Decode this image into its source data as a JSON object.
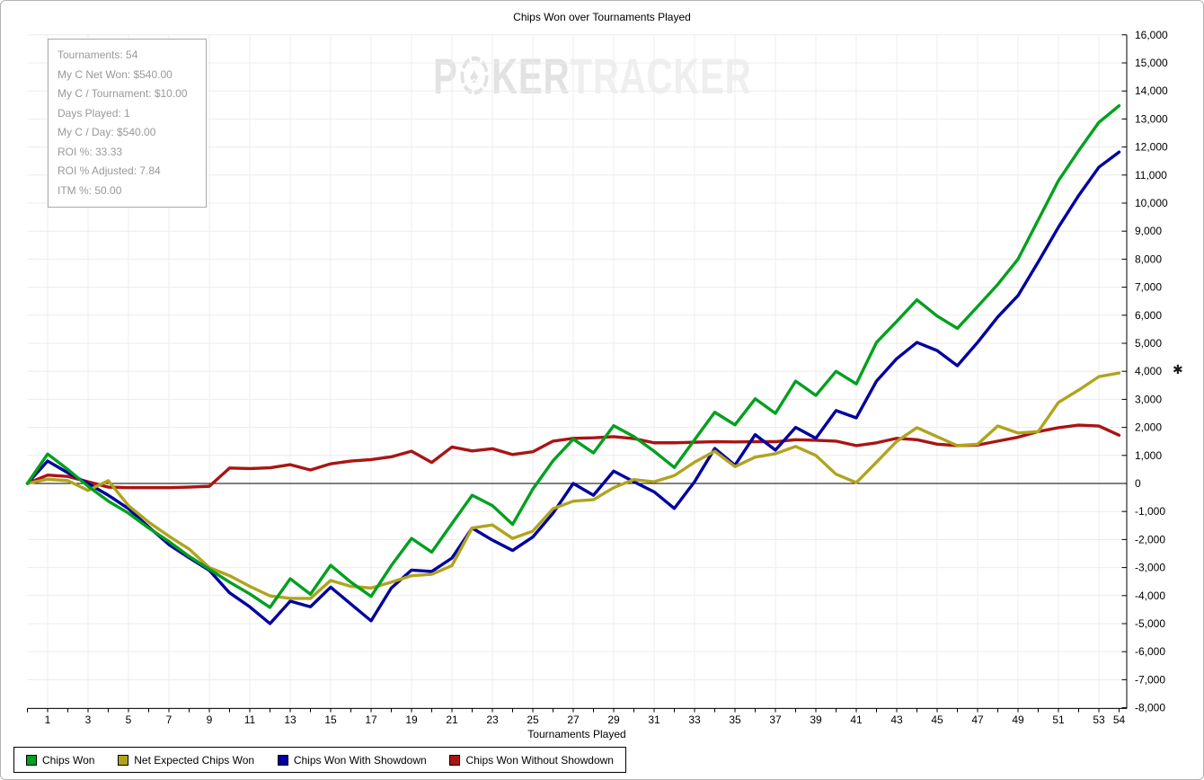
{
  "window": {
    "title": "Chips Won over Tournaments Played"
  },
  "info_box": {
    "lines": [
      "Tournaments: 54",
      "My C Net Won: $540.00",
      "My C / Tournament: $10.00",
      "Days Played: 1",
      "My C / Day: $540.00",
      "ROI %: 33.33",
      "ROI % Adjusted: 7.84",
      "ITM %: 50.00"
    ]
  },
  "watermark": {
    "part1": "P",
    "part2": "KER",
    "part3": "TRACKER",
    "chip_icon": "poker-chip-icon"
  },
  "axes": {
    "x_title": "Tournaments Played",
    "x_min": 0,
    "x_max": 54,
    "x_tick_labels": [
      "1",
      "3",
      "5",
      "7",
      "9",
      "11",
      "13",
      "15",
      "17",
      "19",
      "21",
      "23",
      "25",
      "27",
      "29",
      "31",
      "33",
      "35",
      "37",
      "39",
      "41",
      "43",
      "45",
      "47",
      "49",
      "51",
      "53",
      "54"
    ],
    "y_min": -8000,
    "y_max": 16000,
    "y_step": 1000,
    "y_axis_side": "right",
    "asterisk_marker": {
      "symbol": "✱",
      "at_value": 4000
    }
  },
  "chart_data": {
    "type": "line",
    "title": "Chips Won over Tournaments Played",
    "xlabel": "Tournaments Played",
    "ylabel": "",
    "ylim": [
      -8000,
      16000
    ],
    "xlim": [
      0,
      54
    ],
    "grid": true,
    "legend_position": "bottom-left",
    "gridline_color": "#ececec",
    "zero_line_color": "#000000",
    "x": [
      0,
      1,
      2,
      3,
      4,
      5,
      6,
      7,
      8,
      9,
      10,
      11,
      12,
      13,
      14,
      15,
      16,
      17,
      18,
      19,
      20,
      21,
      22,
      23,
      24,
      25,
      26,
      27,
      28,
      29,
      30,
      31,
      32,
      33,
      34,
      35,
      36,
      37,
      38,
      39,
      40,
      41,
      42,
      43,
      44,
      45,
      46,
      47,
      48,
      49,
      50,
      51,
      52,
      53,
      54
    ],
    "series": [
      {
        "name": "Chips Won",
        "color": "#00a01e",
        "values": [
          0,
          1050,
          500,
          -100,
          -630,
          -1060,
          -1590,
          -2070,
          -2600,
          -3060,
          -3520,
          -3940,
          -4420,
          -3400,
          -3950,
          -2920,
          -3520,
          -4030,
          -2930,
          -1960,
          -2450,
          -1430,
          -420,
          -790,
          -1460,
          -200,
          810,
          1580,
          1090,
          2060,
          1670,
          1150,
          570,
          1560,
          2540,
          2090,
          3020,
          2500,
          3650,
          3140,
          4000,
          3550,
          5030,
          5780,
          6550,
          5970,
          5530,
          6310,
          7100,
          8000,
          9400,
          10800,
          11870,
          12880,
          13470
        ]
      },
      {
        "name": "Net Expected Chips Won",
        "color": "#b0a41e",
        "values": [
          0,
          150,
          100,
          -250,
          100,
          -790,
          -1380,
          -1880,
          -2340,
          -3000,
          -3290,
          -3670,
          -4010,
          -4100,
          -4100,
          -3460,
          -3670,
          -3730,
          -3520,
          -3290,
          -3240,
          -2930,
          -1590,
          -1480,
          -1960,
          -1700,
          -900,
          -630,
          -580,
          -150,
          140,
          60,
          280,
          760,
          1150,
          600,
          940,
          1060,
          1320,
          1000,
          330,
          30,
          760,
          1500,
          1990,
          1670,
          1350,
          1400,
          2050,
          1800,
          1850,
          2890,
          3330,
          3810,
          3940
        ]
      },
      {
        "name": "Chips Won With Showdown",
        "color": "#0000a0",
        "values": [
          0,
          800,
          380,
          0,
          -420,
          -900,
          -1550,
          -2180,
          -2650,
          -3100,
          -3900,
          -4400,
          -5000,
          -4200,
          -4400,
          -3700,
          -4300,
          -4900,
          -3730,
          -3090,
          -3140,
          -2660,
          -1590,
          -2020,
          -2390,
          -1910,
          -1060,
          0,
          -420,
          440,
          60,
          -300,
          -890,
          60,
          1250,
          650,
          1740,
          1190,
          2000,
          1610,
          2600,
          2340,
          3650,
          4450,
          5030,
          4740,
          4200,
          5030,
          5940,
          6700,
          7900,
          9140,
          10270,
          11280,
          11820
        ]
      },
      {
        "name": "Chips Won Without Showdown",
        "color": "#aa1414",
        "values": [
          0,
          300,
          250,
          60,
          -130,
          -150,
          -150,
          -150,
          -130,
          -100,
          550,
          530,
          560,
          670,
          480,
          700,
          800,
          850,
          950,
          1150,
          750,
          1300,
          1160,
          1240,
          1030,
          1130,
          1510,
          1610,
          1630,
          1670,
          1600,
          1450,
          1450,
          1470,
          1490,
          1480,
          1490,
          1490,
          1560,
          1540,
          1510,
          1350,
          1450,
          1610,
          1560,
          1400,
          1350,
          1370,
          1510,
          1650,
          1850,
          1990,
          2080,
          2050,
          1720
        ]
      }
    ]
  }
}
